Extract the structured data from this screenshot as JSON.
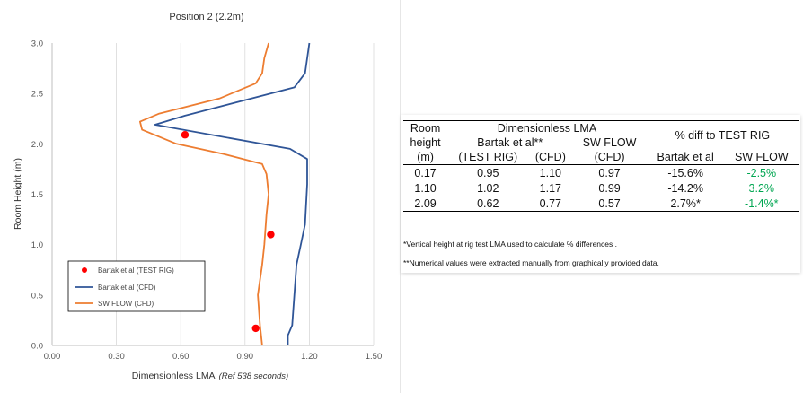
{
  "chart_data": {
    "type": "line",
    "title": "Position 2 (2.2m)",
    "xlabel": "Dimensionless LMA",
    "xlabel_note": "(Ref 538 seconds)",
    "ylabel": "Room Height (m)",
    "xlim": [
      0.0,
      1.5
    ],
    "ylim": [
      0.0,
      3.0
    ],
    "xticks": [
      "0.00",
      "0.30",
      "0.60",
      "0.90",
      "1.20",
      "1.50"
    ],
    "yticks": [
      "0.0",
      "0.5",
      "1.0",
      "1.5",
      "2.0",
      "2.5",
      "3.0"
    ],
    "grid": "vertical",
    "legend_position": "bottom-left",
    "colors": {
      "test_rig": "#ff0000",
      "cfd": "#2f5597",
      "sw_flow": "#ed7d31"
    },
    "series": [
      {
        "name": "Bartak et al (TEST RIG)",
        "kind": "scatter",
        "points": [
          [
            0.95,
            0.17
          ],
          [
            1.02,
            1.1
          ],
          [
            0.62,
            2.09
          ]
        ]
      },
      {
        "name": "Bartak et al (CFD)",
        "kind": "line",
        "points": [
          [
            1.1,
            0.0
          ],
          [
            1.1,
            0.1
          ],
          [
            1.12,
            0.2
          ],
          [
            1.13,
            0.5
          ],
          [
            1.14,
            0.8
          ],
          [
            1.16,
            1.0
          ],
          [
            1.18,
            1.2
          ],
          [
            1.19,
            1.6
          ],
          [
            1.19,
            1.85
          ],
          [
            1.11,
            1.95
          ],
          [
            0.48,
            2.19
          ],
          [
            0.62,
            2.28
          ],
          [
            1.13,
            2.56
          ],
          [
            1.18,
            2.7
          ],
          [
            1.2,
            3.0
          ]
        ]
      },
      {
        "name": "SW FLOW (CFD)",
        "kind": "line",
        "points": [
          [
            0.98,
            0.0
          ],
          [
            0.97,
            0.2
          ],
          [
            0.96,
            0.5
          ],
          [
            0.98,
            0.8
          ],
          [
            0.99,
            1.0
          ],
          [
            1.0,
            1.3
          ],
          [
            1.01,
            1.5
          ],
          [
            1.0,
            1.7
          ],
          [
            0.98,
            1.8
          ],
          [
            0.8,
            1.9
          ],
          [
            0.58,
            2.0
          ],
          [
            0.42,
            2.14
          ],
          [
            0.41,
            2.22
          ],
          [
            0.5,
            2.3
          ],
          [
            0.78,
            2.45
          ],
          [
            0.95,
            2.6
          ],
          [
            0.98,
            2.7
          ],
          [
            0.99,
            2.85
          ],
          [
            1.01,
            3.0
          ]
        ]
      }
    ]
  },
  "table": {
    "header": {
      "room_line1": "Room",
      "room_line2": "height",
      "room_line3": "(m)",
      "group_lma": "Dimensionless LMA",
      "bartak": "Bartak et al**",
      "swflow": "SW FLOW",
      "diff_group": "% diff to TEST RIG",
      "test_rig": "(TEST RIG)",
      "cfd": "(CFD)",
      "sw_cfd": "(CFD)",
      "diff_bartak": "Bartak et al",
      "diff_sw": "SW FLOW"
    },
    "rows": [
      {
        "height": "0.17",
        "test_rig": "0.95",
        "cfd": "1.10",
        "sw": "0.97",
        "d_bartak": "-15.6%",
        "d_sw": "-2.5%"
      },
      {
        "height": "1.10",
        "test_rig": "1.02",
        "cfd": "1.17",
        "sw": "0.99",
        "d_bartak": "-14.2%",
        "d_sw": "3.2%"
      },
      {
        "height": "2.09",
        "test_rig": "0.62",
        "cfd": "0.77",
        "sw": "0.57",
        "d_bartak": "2.7%*",
        "d_sw": "-1.4%*"
      }
    ],
    "highlight_color": "#00a651",
    "notes": [
      "*Vertical height at rig test LMA used to calculate % differences .",
      "**Numerical values were extracted manually from graphically provided data."
    ]
  }
}
